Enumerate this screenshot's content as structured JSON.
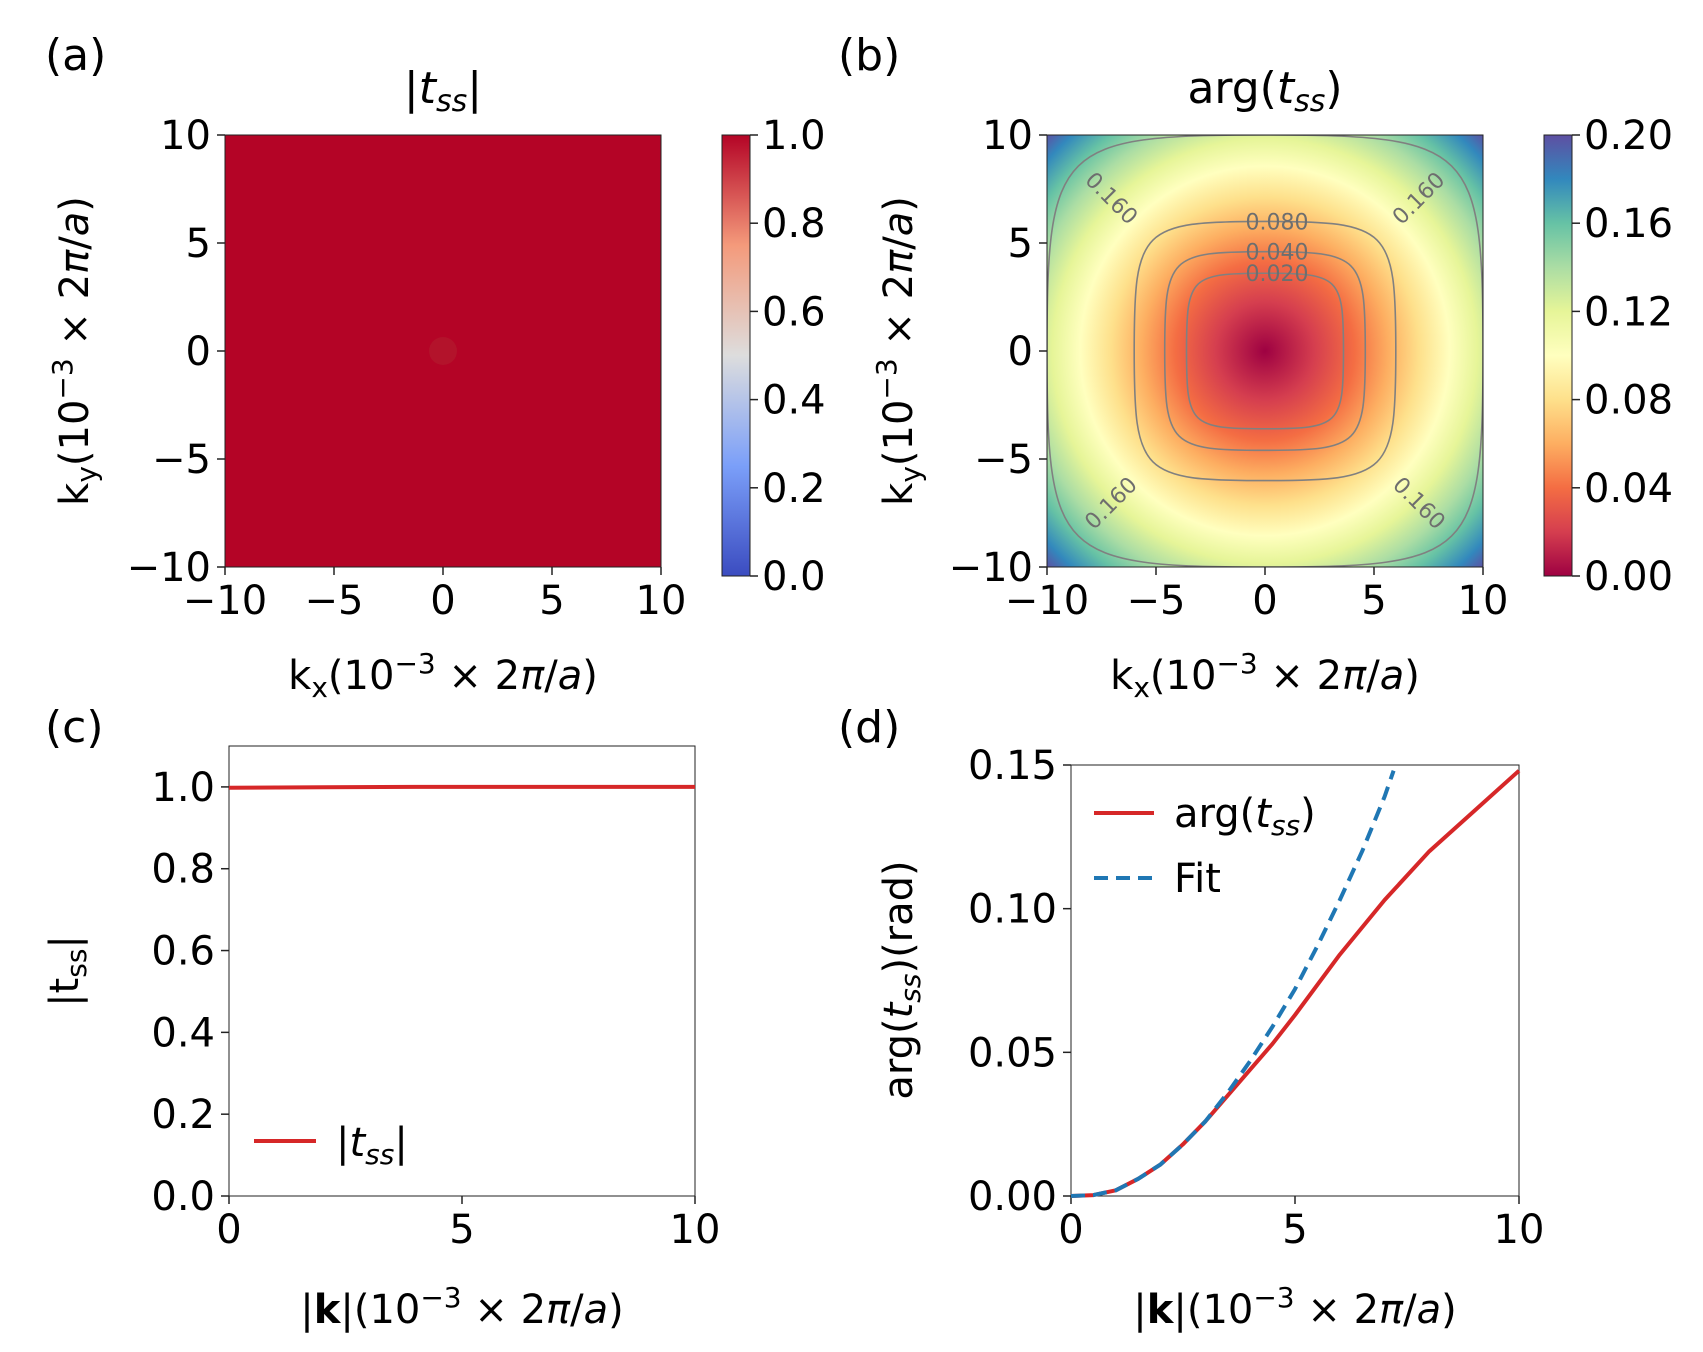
{
  "chart_data": [
    {
      "panel": "(a)",
      "type": "heatmap",
      "title": "|t_ss|",
      "xlabel": "k_x(10^{-3} × 2π/a)",
      "ylabel": "k_y(10^{-3} × 2π/a)",
      "xlim": [
        -10,
        10
      ],
      "ylim": [
        -10,
        10
      ],
      "xticks": [
        "−10",
        "−5",
        "0",
        "5",
        "10"
      ],
      "yticks": [
        "−10",
        "−5",
        "0",
        "5",
        "10"
      ],
      "colormap": "coolwarm",
      "value_range": [
        0.0,
        1.0
      ],
      "field_value": 1.0,
      "colorbar": {
        "ticks": [
          "0.0",
          "0.2",
          "0.4",
          "0.6",
          "0.8",
          "1.0"
        ],
        "min": 0.0,
        "max": 1.0
      }
    },
    {
      "panel": "(b)",
      "type": "heatmap",
      "title": "arg(t_ss)",
      "xlabel": "k_x(10^{-3} × 2π/a)",
      "ylabel": "k_y(10^{-3} × 2π/a)",
      "xlim": [
        -10,
        10
      ],
      "ylim": [
        -10,
        10
      ],
      "xticks": [
        "−10",
        "−5",
        "0",
        "5",
        "10"
      ],
      "yticks": [
        "−10",
        "−5",
        "0",
        "5",
        "10"
      ],
      "colormap": "Spectral",
      "value_range": [
        0.0,
        0.2
      ],
      "contours": [
        {
          "level": 0.02,
          "label": "0.020"
        },
        {
          "level": 0.04,
          "label": "0.040"
        },
        {
          "level": 0.08,
          "label": "0.080"
        },
        {
          "level": 0.16,
          "label": "0.160"
        }
      ],
      "colorbar": {
        "ticks": [
          "0.00",
          "0.04",
          "0.08",
          "0.12",
          "0.16",
          "0.20"
        ],
        "min": 0.0,
        "max": 0.2
      }
    },
    {
      "panel": "(c)",
      "type": "line",
      "xlabel": "|k|(10^{-3} × 2π/a)",
      "ylabel": "|t_ss|",
      "xlim": [
        0,
        10
      ],
      "ylim": [
        0,
        1.1
      ],
      "xticks": [
        "0",
        "5",
        "10"
      ],
      "yticks": [
        "0.0",
        "0.2",
        "0.4",
        "0.6",
        "0.8",
        "1.0"
      ],
      "legend_position": "lower-left",
      "series": [
        {
          "name": "|t_ss|",
          "color": "#d62728",
          "style": "solid",
          "x": [
            0,
            2,
            4,
            6,
            8,
            10
          ],
          "y": [
            0.998,
            0.999,
            1.0,
            1.0,
            1.0,
            1.0
          ]
        }
      ]
    },
    {
      "panel": "(d)",
      "type": "line",
      "xlabel": "|k|(10^{-3} × 2π/a)",
      "ylabel": "arg(t_ss)(rad)",
      "xlim": [
        0,
        10
      ],
      "ylim": [
        0,
        0.15
      ],
      "xticks": [
        "0",
        "5",
        "10"
      ],
      "yticks": [
        "0.00",
        "0.05",
        "0.10",
        "0.15"
      ],
      "legend_position": "upper-left",
      "series": [
        {
          "name": "arg(t_ss)",
          "color": "#d62728",
          "style": "solid",
          "x": [
            0,
            0.5,
            1,
            1.5,
            2,
            2.5,
            3,
            3.5,
            4,
            4.5,
            5,
            6,
            7,
            8,
            9,
            10
          ],
          "y": [
            0,
            0.0003,
            0.002,
            0.006,
            0.011,
            0.018,
            0.026,
            0.035,
            0.044,
            0.053,
            0.063,
            0.084,
            0.103,
            0.12,
            0.134,
            0.148
          ]
        },
        {
          "name": "Fit",
          "color": "#1f77b4",
          "style": "dashed",
          "x": [
            0,
            0.5,
            1,
            1.5,
            2,
            2.5,
            3,
            3.5,
            4,
            4.5,
            5,
            5.5,
            6,
            6.5,
            7,
            7.2
          ],
          "y": [
            0,
            0.0003,
            0.002,
            0.006,
            0.011,
            0.018,
            0.026,
            0.036,
            0.047,
            0.059,
            0.072,
            0.087,
            0.103,
            0.12,
            0.139,
            0.148
          ]
        }
      ]
    }
  ]
}
